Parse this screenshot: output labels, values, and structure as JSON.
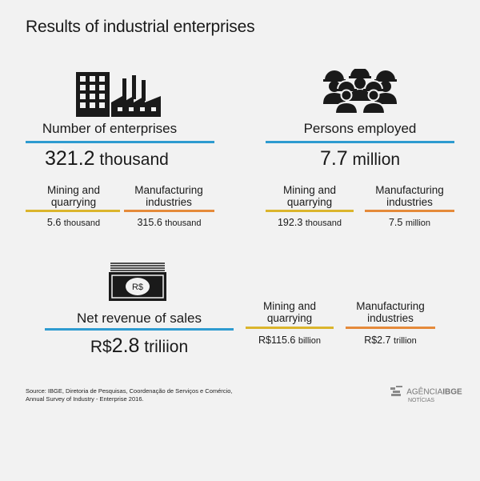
{
  "title": "Results of industrial enterprises",
  "enterprises": {
    "label": "Number of enterprises",
    "value": "321.2",
    "unit": "thousand",
    "mining_label_l1": "Mining and",
    "mining_label_l2": "quarrying",
    "mining_value": "5.6",
    "mining_unit": "thousand",
    "manuf_label_l1": "Manufacturing",
    "manuf_label_l2": "industries",
    "manuf_value": "315.6",
    "manuf_unit": "thousand"
  },
  "persons": {
    "label": "Persons employed",
    "value": "7.7",
    "unit": "million",
    "mining_label_l1": "Mining and",
    "mining_label_l2": "quarrying",
    "mining_value": "192.3",
    "mining_unit": "thousand",
    "manuf_label_l1": "Manufacturing",
    "manuf_label_l2": "industries",
    "manuf_value": "7.5",
    "manuf_unit": "million"
  },
  "revenue": {
    "label": "Net revenue of sales",
    "currency": "R$",
    "value": "2.8",
    "unit": "triliion",
    "icon_text": "R$",
    "mining_label_l1": "Mining and",
    "mining_label_l2": "quarrying",
    "mining_value": "R$115.6",
    "mining_unit": "billion",
    "manuf_label_l1": "Manufacturing",
    "manuf_label_l2": "industries",
    "manuf_value": "R$2.7",
    "manuf_unit": "trillion"
  },
  "source": {
    "line1": "Source: IBGE, Diretoria de Pesquisas, Coordenação de Serviços e Comércio,",
    "line2": "Annual Survey of Industry - Enterprise 2016."
  },
  "logo": {
    "main_a": "AGÊNCIA",
    "main_b": "IBGE",
    "sub": "NOTÍCIAS"
  },
  "colors": {
    "blue": "#2e9bd0",
    "yellow": "#dbb52c",
    "orange": "#e58a3a",
    "background": "#f2f2f2"
  },
  "icons": [
    "factory-icon",
    "workers-icon",
    "banknote-icon",
    "ibge-logo-icon"
  ]
}
